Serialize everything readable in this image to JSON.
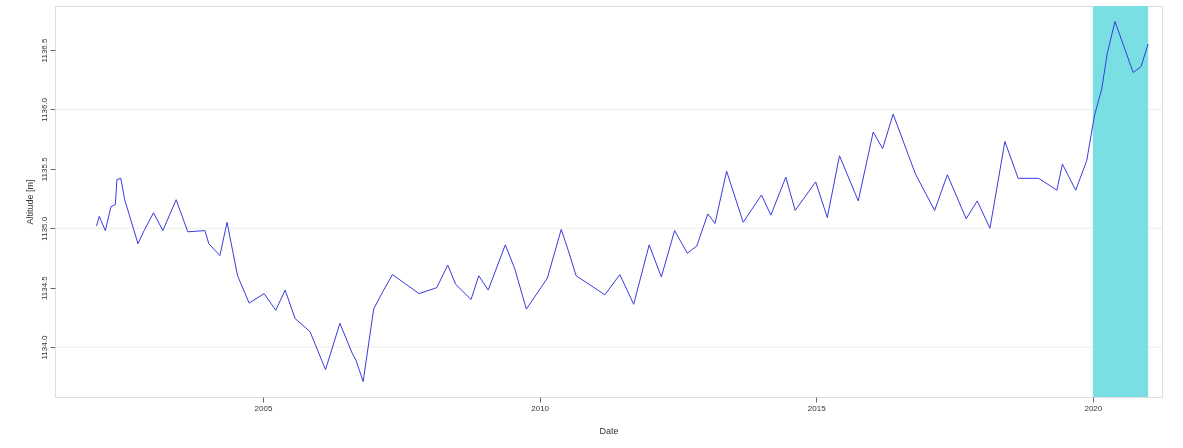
{
  "chart_data": {
    "type": "line",
    "xlabel": "Date",
    "ylabel": "Altitude [m]",
    "xlim": [
      2001.24,
      2021.25
    ],
    "xticks": [
      2005,
      2010,
      2015,
      2020
    ],
    "ylim": [
      1133.58,
      1136.87
    ],
    "yticks": [
      {
        "value": 1134,
        "label": "1134.0"
      },
      1134.5,
      {
        "value": 1135,
        "label": "1135.0"
      },
      1135.5,
      {
        "value": 1136,
        "label": "1136.0"
      },
      1136.5
    ],
    "tick_labels": "xy",
    "series": [
      {
        "color": "#3b3bdc",
        "x": [
          2001.99,
          2002.04,
          2002.15,
          2002.25,
          2002.33,
          2002.36,
          2002.43,
          2002.5,
          2002.74,
          2002.85,
          2003.02,
          2003.19,
          2003.43,
          2003.64,
          2003.95,
          2004.02,
          2004.22,
          2004.35,
          2004.54,
          2004.75,
          2005.02,
          2005.23,
          2005.4,
          2005.58,
          2005.85,
          2006.13,
          2006.39,
          2006.61,
          2006.68,
          2006.81,
          2007.0,
          2007.17,
          2007.34,
          2007.58,
          2007.82,
          2008.14,
          2008.34,
          2008.48,
          2008.76,
          2008.9,
          2009.07,
          2009.38,
          2009.55,
          2009.76,
          2010.14,
          2010.39,
          2010.52,
          2010.66,
          2011.18,
          2011.45,
          2011.7,
          2011.98,
          2012.2,
          2012.44,
          2012.67,
          2012.84,
          2013.04,
          2013.17,
          2013.38,
          2013.68,
          2014.01,
          2014.18,
          2014.45,
          2014.62,
          2014.99,
          2015.2,
          2015.42,
          2015.76,
          2016.03,
          2016.2,
          2016.39,
          2016.67,
          2016.8,
          2017.14,
          2017.37,
          2017.71,
          2017.91,
          2018.14,
          2018.41,
          2018.65,
          2019.02,
          2019.35,
          2019.45,
          2019.69,
          2019.89,
          2020.03,
          2020.16,
          2020.26,
          2020.4,
          2020.73,
          2020.87,
          2021.0
        ],
        "values": [
          1135.02,
          1135.1,
          1134.98,
          1135.18,
          1135.2,
          1135.41,
          1135.42,
          1135.24,
          1134.87,
          1134.98,
          1135.13,
          1134.98,
          1135.24,
          1134.97,
          1134.98,
          1134.87,
          1134.77,
          1135.05,
          1134.6,
          1134.37,
          1134.45,
          1134.31,
          1134.48,
          1134.24,
          1134.13,
          1133.81,
          1134.2,
          1133.95,
          1133.89,
          1133.71,
          1134.32,
          1134.47,
          1134.61,
          1134.53,
          1134.45,
          1134.5,
          1134.69,
          1134.53,
          1134.4,
          1134.6,
          1134.48,
          1134.86,
          1134.66,
          1134.32,
          1134.58,
          1134.99,
          1134.81,
          1134.6,
          1134.44,
          1134.61,
          1134.36,
          1134.86,
          1134.59,
          1134.98,
          1134.79,
          1134.85,
          1135.12,
          1135.04,
          1135.48,
          1135.05,
          1135.28,
          1135.11,
          1135.43,
          1135.15,
          1135.39,
          1135.09,
          1135.61,
          1135.23,
          1135.81,
          1135.67,
          1135.96,
          1135.61,
          1135.45,
          1135.15,
          1135.45,
          1135.08,
          1135.23,
          1135.0,
          1135.73,
          1135.42,
          1135.42,
          1135.32,
          1135.54,
          1135.32,
          1135.57,
          1135.95,
          1136.17,
          1136.47,
          1136.74,
          1136.31,
          1136.36,
          1136.55
        ]
      }
    ],
    "bands": [
      {
        "axis": "x",
        "from": 2020.0,
        "to": 2021.0,
        "color": "#79dfe3"
      }
    ],
    "ref_lines": [
      {
        "axis": "y",
        "value": 1134.0,
        "color": "#eeeeee"
      },
      {
        "axis": "y",
        "value": 1135.0,
        "color": "#eeeeee"
      },
      {
        "axis": "y",
        "value": 1136.0,
        "color": "#eeeeee"
      }
    ]
  }
}
